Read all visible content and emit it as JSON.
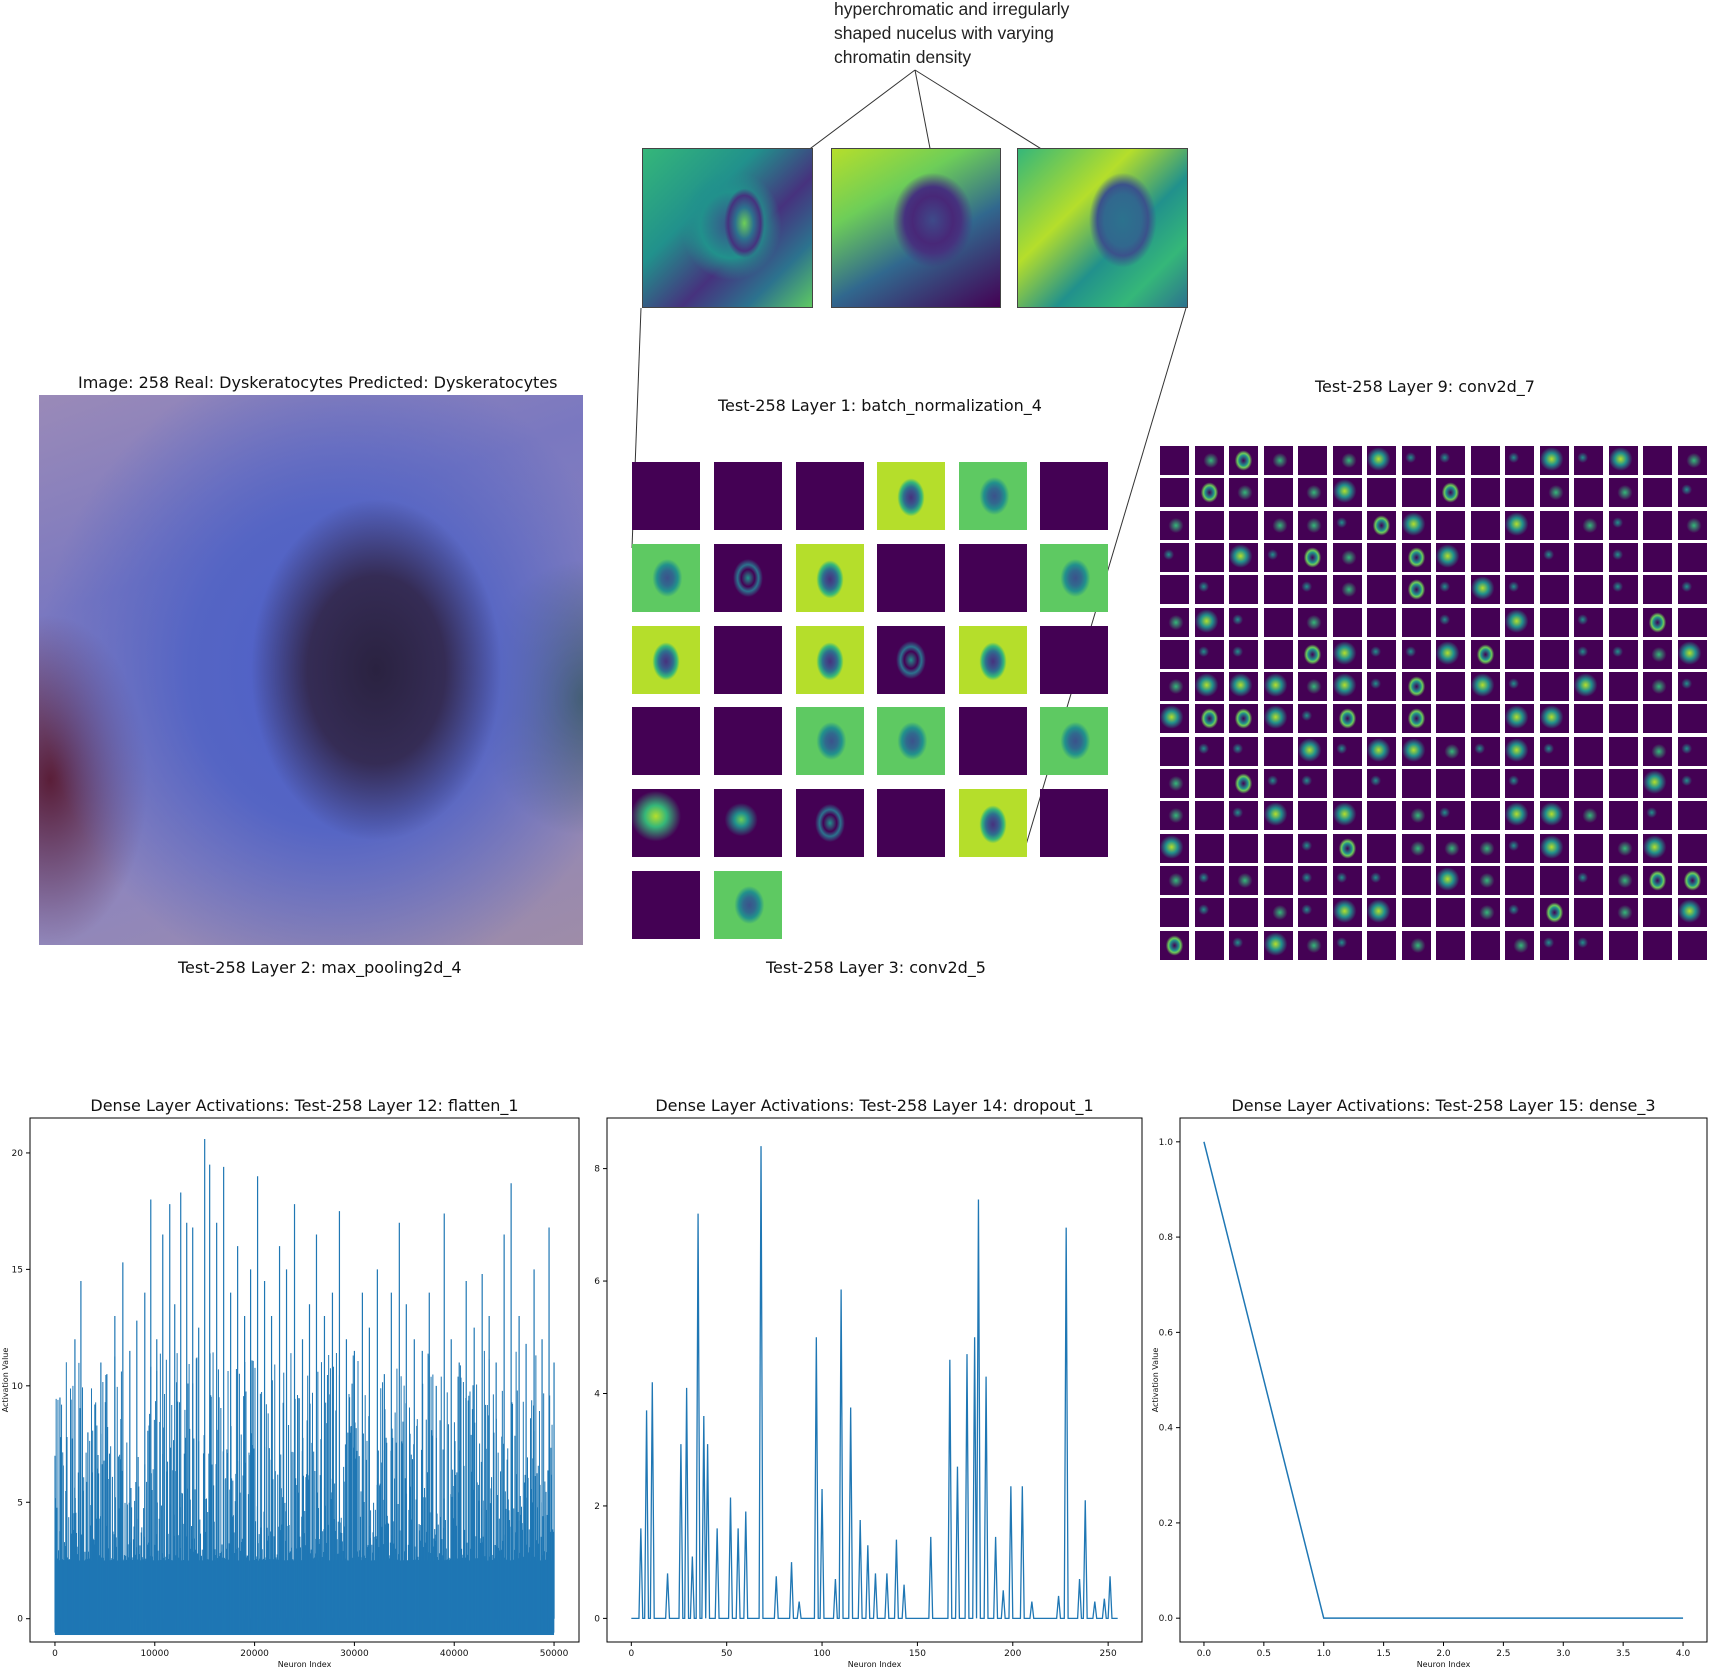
{
  "annotation": {
    "line1": "hyperchromatic and irregularly",
    "line2": "shaped nucelus with varying",
    "line3": "chromatin density"
  },
  "panels": {
    "original_title": "Image: 258 Real: Dyskeratocytes Predicted: Dyskeratocytes",
    "layer1_title": "Test-258 Layer 1: batch_normalization_4",
    "layer2_caption": "Test-258 Layer 2: max_pooling2d_4",
    "layer3_caption": "Test-258 Layer 3: conv2d_5",
    "layer9_title": "Test-258 Layer 9: conv2d_7"
  },
  "colors": {
    "line": "#1f77b4",
    "viridis_dark": "#440154"
  },
  "chart_data": [
    {
      "type": "line",
      "title": "Dense Layer Activations: Test-258 Layer 12: flatten_1",
      "xlabel": "Neuron Index",
      "ylabel": "Activation Value",
      "xlim": [
        -2500,
        52500
      ],
      "ylim": [
        -1.0,
        21.5
      ],
      "xticks": [
        0,
        10000,
        20000,
        30000,
        40000,
        50000
      ],
      "yticks": [
        0,
        5,
        10,
        15,
        20
      ],
      "peaks": [
        [
          500,
          9.5
        ],
        [
          1200,
          7.8
        ],
        [
          2000,
          12
        ],
        [
          2600,
          14.5
        ],
        [
          3300,
          8
        ],
        [
          4000,
          9.2
        ],
        [
          4600,
          11
        ],
        [
          5200,
          10.5
        ],
        [
          6000,
          13
        ],
        [
          6800,
          15.3
        ],
        [
          7500,
          11.5
        ],
        [
          8200,
          12.8
        ],
        [
          9000,
          14
        ],
        [
          9600,
          18
        ],
        [
          10200,
          12
        ],
        [
          10800,
          16.5
        ],
        [
          11500,
          17.8
        ],
        [
          12000,
          13.5
        ],
        [
          12600,
          18.3
        ],
        [
          13200,
          17
        ],
        [
          13800,
          16.8
        ],
        [
          14400,
          12.5
        ],
        [
          15000,
          20.6
        ],
        [
          15500,
          19.5
        ],
        [
          16200,
          17
        ],
        [
          16900,
          19.4
        ],
        [
          17600,
          14
        ],
        [
          18300,
          16
        ],
        [
          19000,
          13
        ],
        [
          19600,
          15
        ],
        [
          20300,
          19
        ],
        [
          21000,
          14.5
        ],
        [
          21700,
          13
        ],
        [
          22500,
          16
        ],
        [
          23200,
          15
        ],
        [
          24000,
          17.8
        ],
        [
          24800,
          12
        ],
        [
          25500,
          13.5
        ],
        [
          26200,
          16.5
        ],
        [
          27000,
          13
        ],
        [
          27800,
          14
        ],
        [
          28500,
          17.5
        ],
        [
          29200,
          12
        ],
        [
          30000,
          11.5
        ],
        [
          30800,
          14
        ],
        [
          31500,
          12.5
        ],
        [
          32300,
          15
        ],
        [
          33000,
          10.5
        ],
        [
          33700,
          14
        ],
        [
          34500,
          17
        ],
        [
          35200,
          13.5
        ],
        [
          36000,
          12
        ],
        [
          36800,
          11.5
        ],
        [
          37500,
          14
        ],
        [
          38200,
          10
        ],
        [
          39000,
          17.4
        ],
        [
          39700,
          12
        ],
        [
          40500,
          11
        ],
        [
          41200,
          14.5
        ],
        [
          42000,
          12.5
        ],
        [
          42800,
          14.8
        ],
        [
          43500,
          13
        ],
        [
          44200,
          11
        ],
        [
          45000,
          16.5
        ],
        [
          45700,
          18.7
        ],
        [
          46500,
          13
        ],
        [
          47200,
          11.8
        ],
        [
          48000,
          15
        ],
        [
          48800,
          12
        ],
        [
          49500,
          16.8
        ],
        [
          50000,
          11
        ]
      ]
    },
    {
      "type": "line",
      "title": "Dense Layer Activations: Test-258 Layer 14: dropout_1",
      "xlabel": "Neuron Index",
      "ylabel": "Activation Value",
      "xlim": [
        -12.75,
        267.75
      ],
      "ylim": [
        -0.42,
        8.9
      ],
      "xticks": [
        0,
        50,
        100,
        150,
        200,
        250
      ],
      "yticks": [
        0,
        2,
        4,
        6,
        8
      ],
      "spikes": [
        [
          5,
          1.6
        ],
        [
          8,
          3.7
        ],
        [
          11,
          4.2
        ],
        [
          19,
          0.8
        ],
        [
          26,
          3.1
        ],
        [
          29,
          4.1
        ],
        [
          32,
          1.1
        ],
        [
          35,
          7.2
        ],
        [
          38,
          3.6
        ],
        [
          40,
          3.1
        ],
        [
          45,
          1.6
        ],
        [
          52,
          2.15
        ],
        [
          56,
          1.6
        ],
        [
          60,
          1.9
        ],
        [
          68,
          8.4
        ],
        [
          76,
          0.75
        ],
        [
          84,
          1.0
        ],
        [
          88,
          0.3
        ],
        [
          97,
          5.0
        ],
        [
          100,
          2.3
        ],
        [
          107,
          0.7
        ],
        [
          110,
          5.85
        ],
        [
          115,
          3.75
        ],
        [
          120,
          1.75
        ],
        [
          124,
          1.3
        ],
        [
          128,
          0.8
        ],
        [
          134,
          0.8
        ],
        [
          139,
          1.4
        ],
        [
          143,
          0.6
        ],
        [
          157,
          1.45
        ],
        [
          167,
          4.6
        ],
        [
          171,
          2.7
        ],
        [
          176,
          4.7
        ],
        [
          180,
          5.0
        ],
        [
          182,
          7.45
        ],
        [
          186,
          4.3
        ],
        [
          191,
          1.45
        ],
        [
          195,
          0.5
        ],
        [
          199,
          2.35
        ],
        [
          205,
          2.35
        ],
        [
          210,
          0.3
        ],
        [
          224,
          0.4
        ],
        [
          228,
          6.95
        ],
        [
          235,
          0.7
        ],
        [
          238,
          2.1
        ],
        [
          243,
          0.3
        ],
        [
          248,
          0.35
        ],
        [
          251,
          0.75
        ]
      ]
    },
    {
      "type": "line",
      "title": "Dense Layer Activations: Test-258 Layer 15: dense_3",
      "xlabel": "Neuron Index",
      "ylabel": "Activation Value",
      "xlim": [
        -0.2,
        4.2
      ],
      "ylim": [
        -0.05,
        1.05
      ],
      "xticks": [
        0.0,
        0.5,
        1.0,
        1.5,
        2.0,
        2.5,
        3.0,
        3.5,
        4.0
      ],
      "yticks": [
        0.0,
        0.2,
        0.4,
        0.6,
        0.8,
        1.0
      ],
      "x": [
        0,
        1,
        2,
        3,
        4
      ],
      "y": [
        1.0,
        0.0,
        0.0,
        0.0,
        0.0
      ]
    }
  ]
}
